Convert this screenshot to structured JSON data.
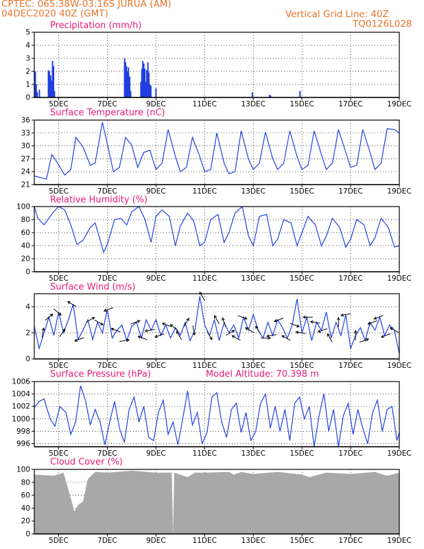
{
  "header": {
    "line1_left": "CPTEC:   065:38W-03:16S   JURUA (AM)",
    "line2_left": "04DEC2020 40Z (GMT)",
    "line1_right": "Vertical Grid Line: 40Z",
    "line2_right": "TQ0126L028"
  },
  "colors": {
    "header": "#e8732a",
    "panel_title": "#e8197a",
    "line": "#1f3fe0",
    "bar": "#1f3fe0",
    "cloud": "#a8a8a8",
    "axis": "#000000"
  },
  "x_axis": {
    "start_day": 4.0,
    "end_day": 19.0,
    "ticks": [
      5,
      7,
      9,
      11,
      13,
      15,
      17,
      19
    ],
    "tick_labels": [
      "5DEC",
      "7DEC",
      "9DEC",
      "11DEC",
      "13DEC",
      "15DEC",
      "17DEC",
      "19DEC"
    ]
  },
  "chart_data": [
    {
      "type": "bar",
      "title": "Precipitation (mm/h)",
      "ylim": [
        0,
        5
      ],
      "yticks": [
        0,
        1,
        2,
        3,
        4,
        5
      ],
      "x": [
        4.04,
        4.08,
        4.12,
        4.21,
        4.58,
        4.62,
        4.67,
        4.71,
        4.75,
        4.79,
        4.83,
        7.71,
        7.75,
        7.79,
        7.83,
        7.87,
        7.92,
        7.96,
        8.38,
        8.42,
        8.46,
        8.5,
        8.54,
        8.58,
        8.62,
        8.67,
        8.71,
        8.75,
        8.79,
        9.0,
        12.96,
        13.67,
        13.71,
        14.92
      ],
      "values": [
        2.0,
        1.0,
        0.4,
        0.6,
        2.1,
        2.0,
        1.7,
        1.3,
        2.8,
        2.4,
        0.5,
        3.0,
        2.7,
        2.4,
        2.0,
        2.3,
        1.6,
        0.5,
        1.2,
        2.2,
        2.8,
        2.6,
        2.2,
        1.2,
        2.1,
        2.7,
        1.9,
        1.0,
        0.9,
        0.7,
        0.4,
        0.2,
        0.15,
        0.5
      ]
    },
    {
      "type": "line",
      "title": "Surface Temperature (nC)",
      "ylim": [
        21,
        36
      ],
      "yticks": [
        21,
        24,
        27,
        30,
        33,
        36
      ],
      "x": [
        4.0,
        4.5,
        4.72,
        4.96,
        5.25,
        5.5,
        5.71,
        6.0,
        6.3,
        6.5,
        6.8,
        7.0,
        7.25,
        7.5,
        7.75,
        8.0,
        8.25,
        8.5,
        8.75,
        9.0,
        9.25,
        9.5,
        9.8,
        10.0,
        10.25,
        10.5,
        10.8,
        11.0,
        11.25,
        11.5,
        11.8,
        12.0,
        12.25,
        12.5,
        12.8,
        13.0,
        13.25,
        13.5,
        13.8,
        14.0,
        14.25,
        14.5,
        14.8,
        15.0,
        15.25,
        15.5,
        15.8,
        16.0,
        16.25,
        16.5,
        16.8,
        17.0,
        17.25,
        17.5,
        17.8,
        18.0,
        18.25,
        18.5,
        18.8,
        19.0
      ],
      "values": [
        23.0,
        22.3,
        28.0,
        26.0,
        23.2,
        24.5,
        32.0,
        29.8,
        25.5,
        26.0,
        35.5,
        30.5,
        24.0,
        25.0,
        32.0,
        30.2,
        25.0,
        28.5,
        29.0,
        24.5,
        26.0,
        33.8,
        27.5,
        24.0,
        25.0,
        32.0,
        27.5,
        24.0,
        24.5,
        33.0,
        26.0,
        23.5,
        24.0,
        33.5,
        27.0,
        24.5,
        26.0,
        33.2,
        27.0,
        24.5,
        26.0,
        33.5,
        27.5,
        24.5,
        25.5,
        33.5,
        28.0,
        24.5,
        26.0,
        33.8,
        28.5,
        25.0,
        25.5,
        33.8,
        28.5,
        24.5,
        26.0,
        34.0,
        33.8,
        33.0
      ]
    },
    {
      "type": "line",
      "title": "Relative Humidity (%)",
      "ylim": [
        0,
        100
      ],
      "yticks": [
        0,
        20,
        40,
        60,
        80,
        100
      ],
      "x": [
        4.0,
        4.15,
        4.4,
        4.75,
        5.0,
        5.25,
        5.5,
        5.75,
        6.0,
        6.3,
        6.5,
        6.85,
        7.0,
        7.3,
        7.55,
        7.8,
        8.0,
        8.3,
        8.55,
        8.8,
        9.0,
        9.25,
        9.55,
        9.8,
        10.0,
        10.3,
        10.55,
        10.8,
        11.0,
        11.25,
        11.55,
        11.8,
        12.0,
        12.25,
        12.55,
        12.8,
        13.0,
        13.25,
        13.55,
        13.8,
        14.0,
        14.25,
        14.55,
        14.8,
        15.0,
        15.25,
        15.55,
        15.8,
        16.0,
        16.25,
        16.55,
        16.8,
        17.0,
        17.25,
        17.55,
        17.8,
        18.0,
        18.25,
        18.55,
        18.8,
        19.0
      ],
      "values": [
        100,
        82,
        72,
        90,
        100,
        95,
        72,
        42,
        48,
        68,
        75,
        30,
        42,
        80,
        82,
        72,
        92,
        100,
        80,
        45,
        85,
        95,
        85,
        40,
        70,
        90,
        78,
        40,
        45,
        80,
        88,
        45,
        60,
        90,
        100,
        55,
        40,
        85,
        88,
        40,
        50,
        80,
        75,
        40,
        60,
        85,
        72,
        40,
        55,
        82,
        68,
        38,
        50,
        80,
        72,
        40,
        52,
        82,
        68,
        38,
        40
      ]
    },
    {
      "type": "line",
      "title": "Surface Wind (m/s)",
      "ylim": [
        0,
        5
      ],
      "yticks": [
        0,
        2,
        4
      ],
      "x": [
        4.0,
        4.2,
        4.4,
        4.6,
        4.8,
        5.0,
        5.2,
        5.4,
        5.6,
        5.8,
        6.0,
        6.2,
        6.4,
        6.6,
        6.8,
        7.0,
        7.2,
        7.4,
        7.6,
        7.8,
        8.0,
        8.2,
        8.4,
        8.6,
        8.8,
        9.0,
        9.2,
        9.4,
        9.6,
        9.8,
        10.0,
        10.2,
        10.4,
        10.6,
        10.8,
        11.0,
        11.2,
        11.4,
        11.6,
        11.8,
        12.0,
        12.2,
        12.4,
        12.6,
        12.8,
        13.0,
        13.2,
        13.4,
        13.6,
        13.8,
        14.0,
        14.2,
        14.4,
        14.6,
        14.8,
        15.0,
        15.2,
        15.4,
        15.6,
        15.8,
        16.0,
        16.2,
        16.4,
        16.6,
        16.8,
        17.0,
        17.2,
        17.4,
        17.6,
        17.8,
        18.0,
        18.2,
        18.4,
        18.6,
        18.8,
        19.0
      ],
      "values": [
        2.5,
        0.8,
        2.0,
        3.2,
        1.8,
        3.6,
        2.0,
        3.0,
        4.2,
        1.5,
        2.2,
        3.0,
        1.5,
        2.8,
        2.0,
        3.8,
        1.6,
        2.2,
        2.6,
        1.4,
        2.5,
        2.8,
        1.6,
        3.0,
        2.2,
        3.0,
        1.8,
        2.6,
        1.6,
        2.4,
        1.8,
        2.8,
        1.4,
        2.2,
        4.8,
        2.6,
        1.8,
        3.0,
        1.4,
        2.8,
        2.0,
        2.6,
        1.6,
        3.2,
        2.2,
        3.4,
        2.2,
        1.6,
        2.8,
        1.8,
        3.0,
        2.4,
        1.6,
        2.6,
        4.6,
        2.0,
        3.2,
        1.4,
        2.8,
        2.2,
        3.6,
        1.6,
        2.8,
        1.8,
        3.4,
        0.8,
        1.8,
        2.4,
        1.4,
        2.8,
        2.2,
        3.2,
        1.8,
        2.6,
        2.2,
        0.4
      ],
      "arrows": [
        {
          "x": 4.35,
          "dir": 80
        },
        {
          "x": 4.6,
          "dir": 40
        },
        {
          "x": 4.95,
          "dir": -40
        },
        {
          "x": 5.15,
          "dir": 55
        },
        {
          "x": 5.55,
          "dir": 150
        },
        {
          "x": 5.85,
          "dir": 200
        },
        {
          "x": 6.3,
          "dir": 30
        },
        {
          "x": 6.65,
          "dir": -30
        },
        {
          "x": 7.05,
          "dir": 200
        },
        {
          "x": 7.35,
          "dir": 160
        },
        {
          "x": 7.7,
          "dir": 10
        },
        {
          "x": 8.15,
          "dir": 20
        },
        {
          "x": 8.45,
          "dir": 160
        },
        {
          "x": 8.75,
          "dir": 190
        },
        {
          "x": 9.15,
          "dir": 200
        },
        {
          "x": 9.45,
          "dir": 160
        },
        {
          "x": 9.75,
          "dir": 140
        },
        {
          "x": 9.95,
          "dir": 120
        },
        {
          "x": 10.25,
          "dir": 60
        },
        {
          "x": 10.55,
          "dir": -80
        },
        {
          "x": 10.9,
          "dir": 120
        },
        {
          "x": 11.2,
          "dir": -60
        },
        {
          "x": 11.5,
          "dir": 120
        },
        {
          "x": 11.8,
          "dir": 110
        },
        {
          "x": 12.05,
          "dir": 30
        },
        {
          "x": 12.3,
          "dir": 150
        },
        {
          "x": 12.55,
          "dir": -20
        },
        {
          "x": 12.85,
          "dir": 150
        },
        {
          "x": 13.2,
          "dir": 120
        },
        {
          "x": 13.5,
          "dir": 0
        },
        {
          "x": 13.75,
          "dir": 190
        },
        {
          "x": 14.05,
          "dir": 200
        },
        {
          "x": 14.35,
          "dir": 150
        },
        {
          "x": 14.7,
          "dir": -20
        },
        {
          "x": 14.95,
          "dir": 170
        },
        {
          "x": 15.25,
          "dir": 180
        },
        {
          "x": 15.55,
          "dir": 170
        },
        {
          "x": 15.85,
          "dir": 200
        },
        {
          "x": 16.15,
          "dir": 120
        },
        {
          "x": 16.5,
          "dir": 90
        },
        {
          "x": 16.8,
          "dir": 190
        },
        {
          "x": 17.2,
          "dir": 90
        },
        {
          "x": 17.55,
          "dir": 20
        },
        {
          "x": 17.9,
          "dir": 200
        },
        {
          "x": 18.15,
          "dir": 200
        },
        {
          "x": 18.45,
          "dir": 200
        },
        {
          "x": 18.8,
          "dir": 150
        }
      ]
    },
    {
      "type": "line",
      "title": "Surface Pressure (hPa)",
      "annotation": "Model Altitude: 70.398  m",
      "ylim": [
        995.5,
        1006
      ],
      "yticks": [
        996,
        998,
        1000,
        1002,
        1004,
        1006
      ],
      "x": [
        4.0,
        4.2,
        4.4,
        4.65,
        4.85,
        5.05,
        5.3,
        5.5,
        5.7,
        5.9,
        6.1,
        6.3,
        6.5,
        6.7,
        6.9,
        7.1,
        7.3,
        7.5,
        7.7,
        7.9,
        8.1,
        8.3,
        8.5,
        8.7,
        8.9,
        9.1,
        9.3,
        9.5,
        9.7,
        9.9,
        10.1,
        10.3,
        10.5,
        10.7,
        10.9,
        11.1,
        11.3,
        11.5,
        11.7,
        11.9,
        12.1,
        12.3,
        12.5,
        12.7,
        12.9,
        13.1,
        13.3,
        13.5,
        13.7,
        13.9,
        14.1,
        14.3,
        14.5,
        14.7,
        14.9,
        15.1,
        15.3,
        15.5,
        15.7,
        15.9,
        16.1,
        16.3,
        16.5,
        16.7,
        16.9,
        17.1,
        17.3,
        17.5,
        17.7,
        17.9,
        18.1,
        18.3,
        18.5,
        18.7,
        18.9,
        19.0
      ],
      "values": [
        1001.8,
        1002.8,
        1003.2,
        1000.0,
        998.8,
        1002.0,
        1001.0,
        997.5,
        999.5,
        1005.3,
        1003.0,
        999.0,
        1001.5,
        999.5,
        995.8,
        999.5,
        1002.8,
        998.5,
        996.2,
        1001.5,
        1003.5,
        999.5,
        1002.0,
        997.0,
        996.5,
        1001.0,
        1003.0,
        997.5,
        999.5,
        995.8,
        1000.0,
        1004.5,
        999.0,
        1001.0,
        996.0,
        997.8,
        1003.5,
        1004.2,
        999.5,
        997.0,
        1001.5,
        1002.5,
        997.8,
        1001.0,
        996.5,
        998.0,
        1002.5,
        1004.0,
        998.5,
        1002.0,
        998.0,
        1001.5,
        996.5,
        1002.5,
        1003.5,
        1000.0,
        1002.0,
        995.5,
        1000.5,
        1004.0,
        998.0,
        1001.5,
        995.5,
        1000.5,
        1002.5,
        997.5,
        1001.5,
        998.5,
        996.0,
        1001.0,
        1003.0,
        998.0,
        1001.5,
        1002.0,
        996.5,
        997.8
      ]
    },
    {
      "type": "area",
      "title": "Cloud Cover (%)",
      "ylim": [
        0,
        100
      ],
      "yticks": [
        0,
        20,
        40,
        60,
        80,
        100
      ],
      "x": [
        4.0,
        4.8,
        5.2,
        5.5,
        5.65,
        5.8,
        6.0,
        6.2,
        6.5,
        7.0,
        8.0,
        9.0,
        9.65,
        9.7,
        9.75,
        10.3,
        10.6,
        11.0,
        12.0,
        12.2,
        12.5,
        13.0,
        14.0,
        15.0,
        15.3,
        16.0,
        17.0,
        18.0,
        18.5,
        19.0
      ],
      "values": [
        92,
        90,
        95,
        55,
        35,
        45,
        50,
        85,
        96,
        95,
        98,
        95,
        95,
        0,
        95,
        88,
        95,
        95,
        96,
        92,
        96,
        93,
        96,
        92,
        88,
        95,
        93,
        96,
        90,
        95
      ]
    }
  ]
}
